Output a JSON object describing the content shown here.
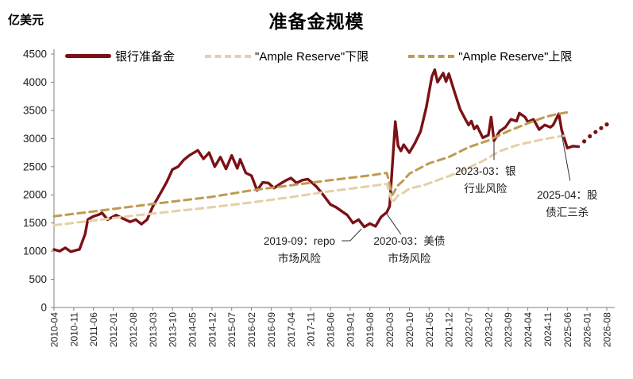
{
  "title": "准备金规模",
  "unit_label": "亿美元",
  "colors": {
    "reserves": "#7A1116",
    "ample_lower": "#E6CFA8",
    "ample_upper": "#BF9B50",
    "axis": "#808080",
    "tick_text": "#333333",
    "annotation_text": "#1a1a1a",
    "leader_line": "#333333"
  },
  "legend": [
    {
      "label": "银行准备金",
      "swatch": "solid",
      "color": "#7A1116"
    },
    {
      "label": "\"Ample Reserve\"下限",
      "swatch": "dashed",
      "color": "#E6CFA8"
    },
    {
      "label": "\"Ample Reserve\"上限",
      "swatch": "dashed",
      "color": "#BF9B50"
    }
  ],
  "chart_data": {
    "type": "line",
    "title": "准备金规模",
    "xlabel": "",
    "ylabel": "亿美元",
    "ylim": [
      0,
      4500
    ],
    "yticks": [
      0,
      500,
      1000,
      1500,
      2000,
      2500,
      3000,
      3500,
      4000,
      4500
    ],
    "xticks": [
      "2010-04",
      "2010-11",
      "2011-06",
      "2012-01",
      "2012-08",
      "2013-03",
      "2013-10",
      "2014-05",
      "2014-12",
      "2015-07",
      "2016-02",
      "2016-09",
      "2017-04",
      "2017-11",
      "2018-06",
      "2019-01",
      "2019-08",
      "2020-03",
      "2020-10",
      "2021-05",
      "2021-12",
      "2022-07",
      "2023-02",
      "2023-09",
      "2024-04",
      "2024-11",
      "2025-06",
      "2026-01",
      "2026-08"
    ],
    "grid": false,
    "legend_position": "top",
    "series": [
      {
        "id": "reserves",
        "name": "银行准备金",
        "style": "solid",
        "color": "#7A1116",
        "width": 3.4,
        "points": [
          [
            "2010-04",
            1030
          ],
          [
            "2010-06",
            1000
          ],
          [
            "2010-08",
            1060
          ],
          [
            "2010-10",
            990
          ],
          [
            "2010-12",
            1020
          ],
          [
            "2011-01",
            1030
          ],
          [
            "2011-03",
            1300
          ],
          [
            "2011-04",
            1560
          ],
          [
            "2011-06",
            1620
          ],
          [
            "2011-08",
            1650
          ],
          [
            "2011-09",
            1680
          ],
          [
            "2011-11",
            1560
          ],
          [
            "2012-02",
            1640
          ],
          [
            "2012-04",
            1590
          ],
          [
            "2012-07",
            1520
          ],
          [
            "2012-09",
            1560
          ],
          [
            "2012-11",
            1480
          ],
          [
            "2013-01",
            1560
          ],
          [
            "2013-03",
            1790
          ],
          [
            "2013-06",
            2050
          ],
          [
            "2013-08",
            2230
          ],
          [
            "2013-10",
            2450
          ],
          [
            "2013-12",
            2500
          ],
          [
            "2014-02",
            2620
          ],
          [
            "2014-04",
            2700
          ],
          [
            "2014-07",
            2790
          ],
          [
            "2014-09",
            2640
          ],
          [
            "2014-11",
            2750
          ],
          [
            "2015-01",
            2500
          ],
          [
            "2015-03",
            2670
          ],
          [
            "2015-05",
            2460
          ],
          [
            "2015-07",
            2700
          ],
          [
            "2015-09",
            2470
          ],
          [
            "2015-10",
            2630
          ],
          [
            "2015-12",
            2390
          ],
          [
            "2016-02",
            2340
          ],
          [
            "2016-04",
            2080
          ],
          [
            "2016-06",
            2220
          ],
          [
            "2016-08",
            2210
          ],
          [
            "2016-10",
            2120
          ],
          [
            "2016-12",
            2190
          ],
          [
            "2017-02",
            2250
          ],
          [
            "2017-04",
            2300
          ],
          [
            "2017-06",
            2210
          ],
          [
            "2017-08",
            2260
          ],
          [
            "2017-10",
            2280
          ],
          [
            "2018-01",
            2150
          ],
          [
            "2018-03",
            2030
          ],
          [
            "2018-06",
            1830
          ],
          [
            "2018-08",
            1780
          ],
          [
            "2018-10",
            1710
          ],
          [
            "2018-12",
            1640
          ],
          [
            "2019-02",
            1500
          ],
          [
            "2019-04",
            1560
          ],
          [
            "2019-06",
            1430
          ],
          [
            "2019-08",
            1490
          ],
          [
            "2019-10",
            1440
          ],
          [
            "2019-12",
            1610
          ],
          [
            "2020-02",
            1690
          ],
          [
            "2020-03",
            1800
          ],
          [
            "2020-05",
            3300
          ],
          [
            "2020-06",
            2870
          ],
          [
            "2020-07",
            2780
          ],
          [
            "2020-08",
            2890
          ],
          [
            "2020-10",
            2750
          ],
          [
            "2020-12",
            2920
          ],
          [
            "2021-02",
            3130
          ],
          [
            "2021-04",
            3550
          ],
          [
            "2021-06",
            4100
          ],
          [
            "2021-07",
            4220
          ],
          [
            "2021-08",
            4000
          ],
          [
            "2021-10",
            4160
          ],
          [
            "2021-11",
            4010
          ],
          [
            "2021-12",
            4150
          ],
          [
            "2022-02",
            3830
          ],
          [
            "2022-04",
            3520
          ],
          [
            "2022-06",
            3330
          ],
          [
            "2022-07",
            3240
          ],
          [
            "2022-08",
            3310
          ],
          [
            "2022-09",
            3170
          ],
          [
            "2022-10",
            3225
          ],
          [
            "2022-12",
            3015
          ],
          [
            "2023-02",
            3060
          ],
          [
            "2023-03",
            3380
          ],
          [
            "2023-04",
            2960
          ],
          [
            "2023-06",
            3130
          ],
          [
            "2023-08",
            3200
          ],
          [
            "2023-10",
            3340
          ],
          [
            "2023-12",
            3310
          ],
          [
            "2024-01",
            3450
          ],
          [
            "2024-03",
            3380
          ],
          [
            "2024-04",
            3295
          ],
          [
            "2024-06",
            3340
          ],
          [
            "2024-08",
            3160
          ],
          [
            "2024-10",
            3240
          ],
          [
            "2024-12",
            3200
          ],
          [
            "2025-01",
            3240
          ],
          [
            "2025-03",
            3440
          ],
          [
            "2025-04",
            3150
          ],
          [
            "2025-05",
            2990
          ],
          [
            "2025-06",
            2830
          ],
          [
            "2025-08",
            2865
          ],
          [
            "2025-10",
            2855
          ]
        ]
      },
      {
        "id": "reserves-projection",
        "style": "dots",
        "color": "#7A1116",
        "radius": 2.6,
        "points": [
          [
            "2025-12",
            2950
          ],
          [
            "2026-02",
            3040
          ],
          [
            "2026-04",
            3115
          ],
          [
            "2026-06",
            3185
          ],
          [
            "2026-08",
            3250
          ]
        ]
      },
      {
        "id": "ample-lower",
        "name": "\"Ample Reserve\"下限",
        "style": "dashed",
        "color": "#E6CFA8",
        "width": 3,
        "points": [
          [
            "2010-04",
            1460
          ],
          [
            "2011-06",
            1545
          ],
          [
            "2012-08",
            1630
          ],
          [
            "2013-10",
            1705
          ],
          [
            "2014-12",
            1780
          ],
          [
            "2016-02",
            1865
          ],
          [
            "2017-04",
            1960
          ],
          [
            "2018-06",
            2065
          ],
          [
            "2019-06",
            2140
          ],
          [
            "2020-02",
            2195
          ],
          [
            "2020-04",
            1860
          ],
          [
            "2020-06",
            1990
          ],
          [
            "2020-08",
            2040
          ],
          [
            "2020-10",
            2110
          ],
          [
            "2021-03",
            2170
          ],
          [
            "2021-08",
            2260
          ],
          [
            "2021-12",
            2330
          ],
          [
            "2022-06",
            2460
          ],
          [
            "2022-12",
            2600
          ],
          [
            "2023-06",
            2775
          ],
          [
            "2023-12",
            2880
          ],
          [
            "2024-06",
            2950
          ],
          [
            "2024-12",
            3010
          ],
          [
            "2025-05",
            3050
          ]
        ]
      },
      {
        "id": "ample-upper",
        "name": "\"Ample Reserve\"上限",
        "style": "dashed",
        "color": "#BF9B50",
        "width": 3,
        "points": [
          [
            "2010-04",
            1620
          ],
          [
            "2011-06",
            1705
          ],
          [
            "2012-08",
            1795
          ],
          [
            "2013-10",
            1880
          ],
          [
            "2014-12",
            1965
          ],
          [
            "2016-02",
            2080
          ],
          [
            "2017-04",
            2170
          ],
          [
            "2018-06",
            2260
          ],
          [
            "2019-08",
            2345
          ],
          [
            "2020-02",
            2390
          ],
          [
            "2020-04",
            2000
          ],
          [
            "2020-06",
            2170
          ],
          [
            "2020-08",
            2260
          ],
          [
            "2020-10",
            2375
          ],
          [
            "2021-05",
            2560
          ],
          [
            "2021-12",
            2670
          ],
          [
            "2022-07",
            2845
          ],
          [
            "2023-02",
            2965
          ],
          [
            "2023-09",
            3130
          ],
          [
            "2024-04",
            3270
          ],
          [
            "2024-10",
            3380
          ],
          [
            "2025-02",
            3430
          ],
          [
            "2025-06",
            3465
          ]
        ]
      }
    ],
    "annotations": [
      {
        "id": "repo-risk",
        "lines": [
          "2019-09：repo",
          "市场风险"
        ],
        "label_pos": [
          "2017-07",
          1115
        ],
        "leader": [
          [
            "2019-05",
            1395
          ],
          [
            "2019-01",
            1185
          ],
          [
            "2018-10",
            1185
          ]
        ]
      },
      {
        "id": "ust-risk",
        "lines": [
          "2020-03：美债",
          "市场风险"
        ],
        "label_pos": [
          "2020-10",
          1115
        ],
        "leader": [
          [
            "2020-02",
            1660
          ],
          [
            "2020-07",
            1300
          ]
        ]
      },
      {
        "id": "banking-risk",
        "lines": [
          "2023-03：银",
          "行业风险"
        ],
        "label_pos": [
          "2023-01",
          2355
        ],
        "leader": [
          [
            "2023-04",
            2940
          ],
          [
            "2023-04",
            2620
          ]
        ]
      },
      {
        "id": "triple-selloff",
        "lines": [
          "2025-04：股",
          "债汇三杀"
        ],
        "label_pos": [
          "2025-06",
          1930
        ],
        "leader": [
          [
            "2025-04",
            3080
          ],
          [
            "2025-07",
            2250
          ]
        ]
      }
    ]
  }
}
